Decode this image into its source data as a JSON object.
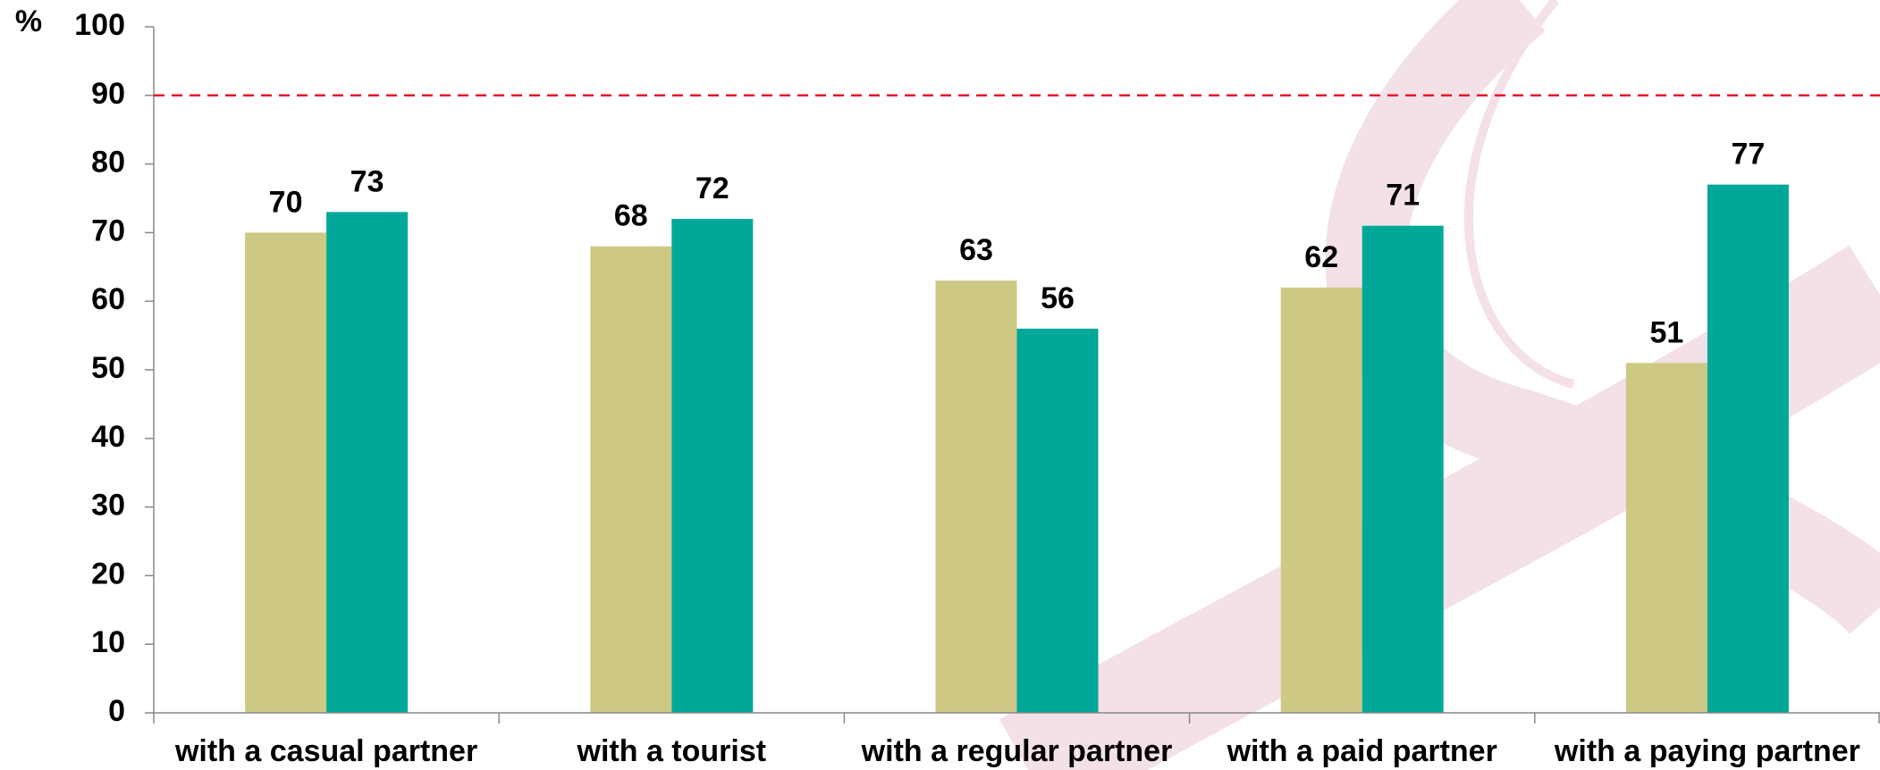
{
  "chart_data": {
    "type": "bar",
    "y_label": "%",
    "categories": [
      "with a casual partner",
      "with a tourist",
      "with a regular partner",
      "with a paid partner",
      "with a paying partner"
    ],
    "series": [
      {
        "color": "#cdc884",
        "values": [
          70,
          68,
          63,
          62,
          51
        ]
      },
      {
        "color": "#00a89a",
        "values": [
          73,
          72,
          56,
          71,
          77
        ]
      }
    ],
    "reference_line": {
      "value": 90,
      "color": "#e4182d"
    },
    "ylim": [
      0,
      100
    ],
    "yticks": [
      0,
      10,
      20,
      30,
      40,
      50,
      60,
      70,
      80,
      90,
      100
    ]
  }
}
